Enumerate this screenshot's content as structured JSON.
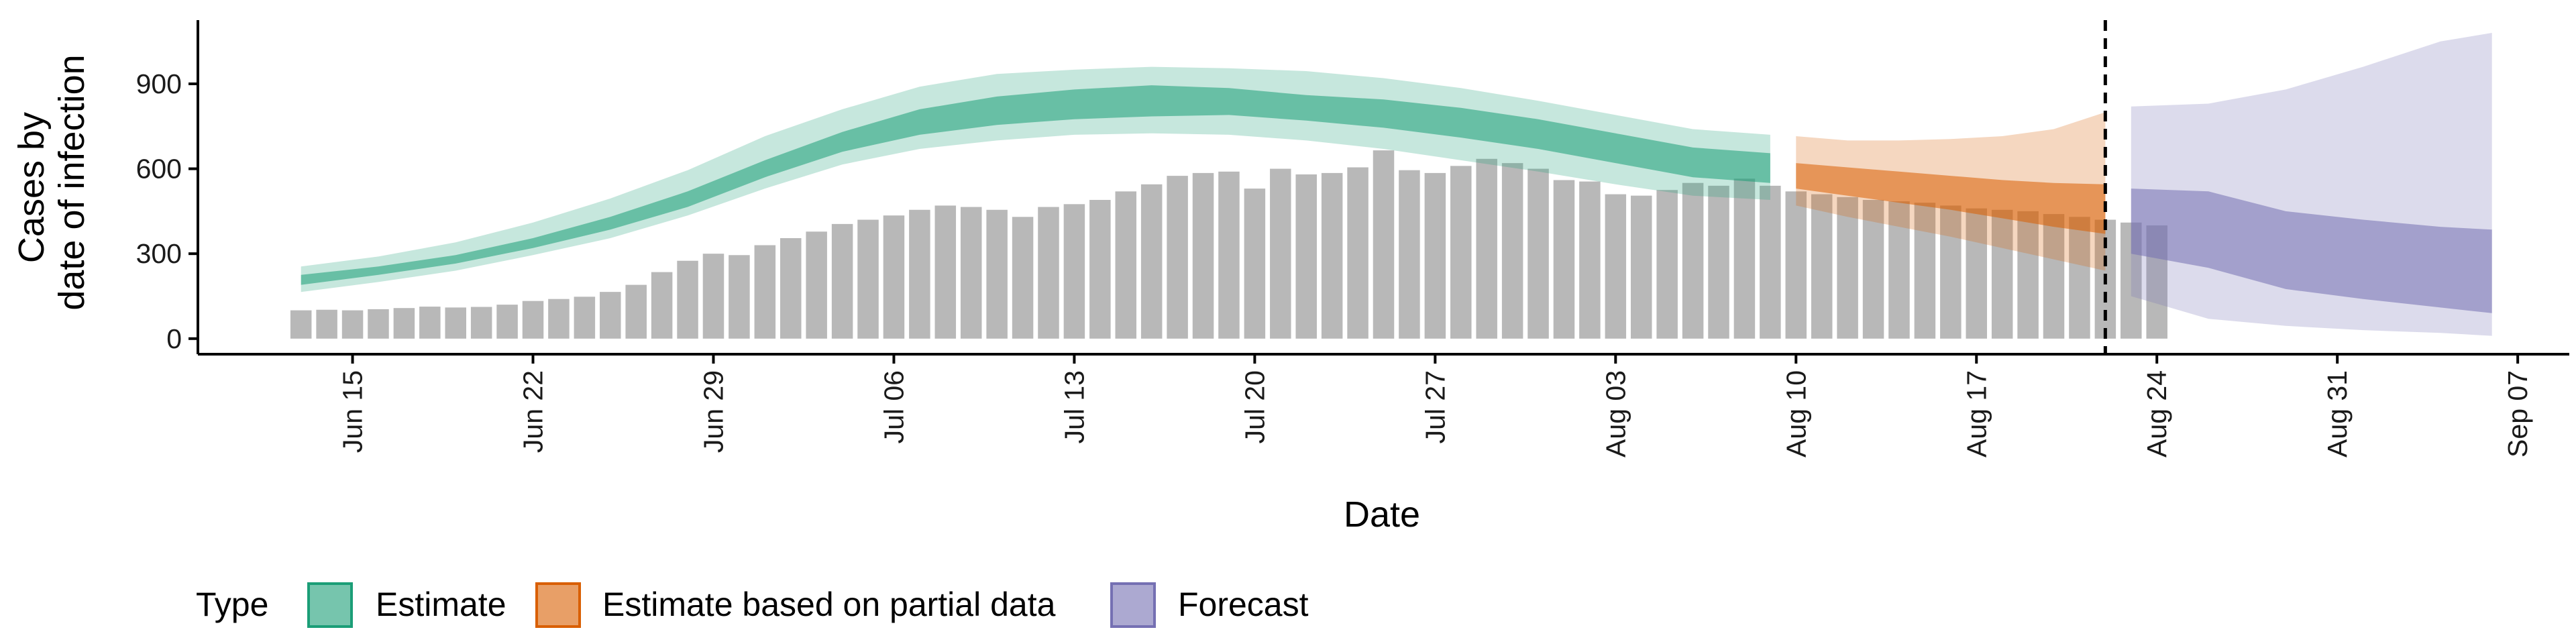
{
  "chart_data": {
    "type": "bar",
    "xlabel": "Date",
    "ylabel_lines": [
      "Cases by",
      "date of infection"
    ],
    "y_ticks": [
      0,
      300,
      600,
      900
    ],
    "ylim": [
      -55,
      1125
    ],
    "x_ticks": [
      {
        "date": "2020-06-15",
        "label": "Jun 15"
      },
      {
        "date": "2020-06-22",
        "label": "Jun 22"
      },
      {
        "date": "2020-06-29",
        "label": "Jun 29"
      },
      {
        "date": "2020-07-06",
        "label": "Jul 06"
      },
      {
        "date": "2020-07-13",
        "label": "Jul 13"
      },
      {
        "date": "2020-07-20",
        "label": "Jul 20"
      },
      {
        "date": "2020-07-27",
        "label": "Jul 27"
      },
      {
        "date": "2020-08-03",
        "label": "Aug 03"
      },
      {
        "date": "2020-08-10",
        "label": "Aug 10"
      },
      {
        "date": "2020-08-17",
        "label": "Aug 17"
      },
      {
        "date": "2020-08-24",
        "label": "Aug 24"
      },
      {
        "date": "2020-08-31",
        "label": "Aug 31"
      },
      {
        "date": "2020-09-07",
        "label": "Sep 07"
      }
    ],
    "xlim": [
      "2020-06-09",
      "2020-09-09"
    ],
    "forecast_start": "2020-08-22",
    "reported_cases": {
      "start_date": "2020-06-13",
      "values": [
        100,
        102,
        100,
        104,
        108,
        113,
        110,
        112,
        120,
        133,
        140,
        148,
        165,
        190,
        235,
        275,
        300,
        295,
        330,
        355,
        378,
        405,
        420,
        435,
        455,
        470,
        465,
        455,
        430,
        465,
        475,
        490,
        520,
        545,
        575,
        585,
        590,
        530,
        600,
        580,
        585,
        605,
        665,
        595,
        585,
        610,
        635,
        620,
        600,
        560,
        555,
        510,
        505,
        525,
        550,
        540,
        565,
        540,
        520,
        510,
        500,
        490,
        485,
        480,
        470,
        460,
        455,
        450,
        440,
        430,
        420,
        410,
        400
      ]
    },
    "series": [
      {
        "name": "Estimate",
        "color": "#1b9e77",
        "x": [
          "2020-06-13",
          "2020-06-16",
          "2020-06-19",
          "2020-06-22",
          "2020-06-25",
          "2020-06-28",
          "2020-07-01",
          "2020-07-04",
          "2020-07-07",
          "2020-07-10",
          "2020-07-13",
          "2020-07-16",
          "2020-07-19",
          "2020-07-22",
          "2020-07-25",
          "2020-07-28",
          "2020-07-31",
          "2020-08-03",
          "2020-08-06",
          "2020-08-09"
        ],
        "inner_lower": [
          190,
          225,
          265,
          320,
          385,
          465,
          570,
          660,
          720,
          755,
          775,
          785,
          790,
          770,
          745,
          710,
          670,
          620,
          570,
          550
        ],
        "inner_upper": [
          225,
          255,
          295,
          355,
          430,
          520,
          630,
          730,
          810,
          855,
          880,
          895,
          885,
          860,
          845,
          815,
          775,
          725,
          675,
          655
        ],
        "outer_lower": [
          165,
          200,
          240,
          295,
          355,
          435,
          530,
          615,
          670,
          700,
          720,
          725,
          720,
          700,
          670,
          630,
          590,
          545,
          505,
          490
        ],
        "outer_upper": [
          255,
          290,
          340,
          410,
          495,
          595,
          715,
          810,
          890,
          935,
          950,
          960,
          955,
          945,
          920,
          885,
          840,
          790,
          740,
          720
        ]
      },
      {
        "name": "Estimate based on partial data",
        "color": "#d95f02",
        "x": [
          "2020-08-10",
          "2020-08-12",
          "2020-08-14",
          "2020-08-16",
          "2020-08-18",
          "2020-08-20",
          "2020-08-22"
        ],
        "inner_lower": [
          530,
          505,
          480,
          455,
          425,
          395,
          370
        ],
        "inner_upper": [
          620,
          605,
          590,
          575,
          560,
          550,
          545
        ],
        "outer_lower": [
          470,
          430,
          395,
          360,
          320,
          280,
          240
        ],
        "outer_upper": [
          715,
          700,
          700,
          705,
          715,
          740,
          800
        ]
      },
      {
        "name": "Forecast",
        "color": "#7570b3",
        "x": [
          "2020-08-23",
          "2020-08-26",
          "2020-08-29",
          "2020-09-01",
          "2020-09-04",
          "2020-09-06"
        ],
        "inner_lower": [
          300,
          250,
          175,
          140,
          110,
          90
        ],
        "inner_upper": [
          530,
          520,
          450,
          420,
          395,
          385
        ],
        "outer_lower": [
          150,
          70,
          45,
          30,
          20,
          10
        ],
        "outer_upper": [
          820,
          830,
          880,
          960,
          1050,
          1080
        ]
      }
    ]
  },
  "legend": {
    "title": "Type",
    "items": [
      {
        "label": "Estimate",
        "color": "#1b9e77"
      },
      {
        "label": "Estimate based on partial data",
        "color": "#d95f02"
      },
      {
        "label": "Forecast",
        "color": "#7570b3"
      }
    ]
  },
  "colors": {
    "bars": "#b8b8b8",
    "axis": "#000000"
  }
}
